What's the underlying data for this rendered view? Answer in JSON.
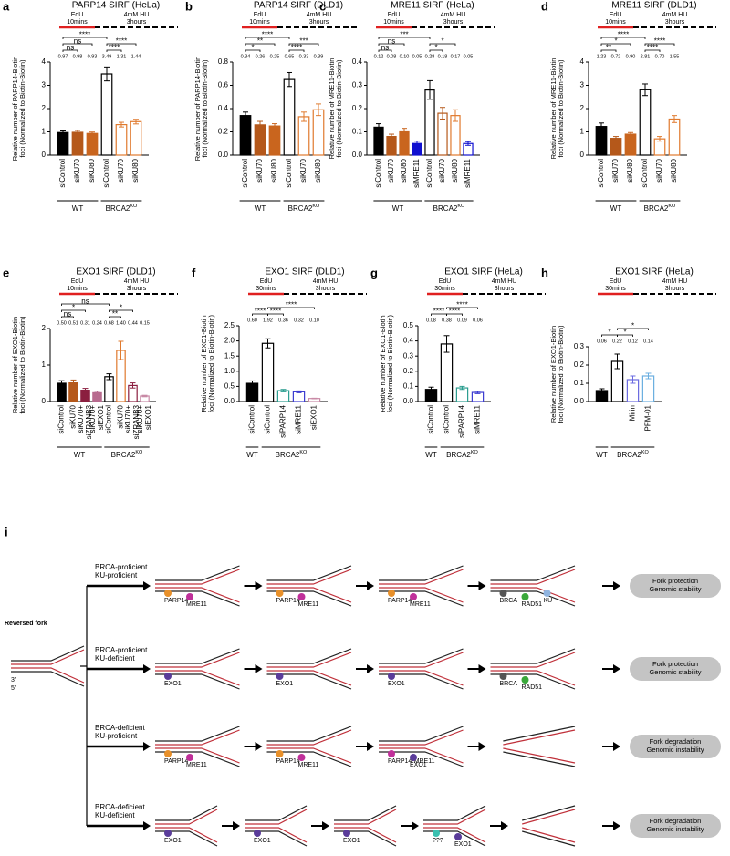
{
  "chart_data": [
    {
      "type": "bar",
      "panel": "a",
      "title": "PARP14 SIRF (HeLa)",
      "protocol": [
        "EdU\n10mins",
        "4mM HU\n3hours"
      ],
      "ylabel": "Relative number of PARP14-Biotin\nfoci (Normalized to Biotin-Biotin)",
      "categories": [
        "siControl",
        "siKU70",
        "siKU80",
        "siControl",
        "siKU70",
        "siKU80"
      ],
      "values": [
        0.97,
        0.98,
        0.93,
        3.49,
        1.31,
        1.44
      ],
      "value_labels": [
        "0.97",
        "0.98",
        "0.93",
        "3.49",
        "1.31",
        "1.44"
      ],
      "errors": [
        0.07,
        0.08,
        0.06,
        0.3,
        0.1,
        0.1
      ],
      "colors": [
        "#000000",
        "#b5581a",
        "#c9651e",
        "#000000",
        "#e07a2e",
        "#e07a2e"
      ],
      "hollow": [
        false,
        false,
        false,
        true,
        true,
        true
      ],
      "ylim": [
        0,
        4
      ],
      "yticks": [
        0,
        1,
        2,
        3,
        4
      ],
      "groups": [
        {
          "label": "WT",
          "count": 3
        },
        {
          "label": "BRCA2",
          "sup": "KO",
          "count": 3
        }
      ],
      "brackets": [
        {
          "from": 0,
          "to": 1,
          "label": "ns"
        },
        {
          "from": 0,
          "to": 2,
          "label": "ns"
        },
        {
          "from": 0,
          "to": 3,
          "label": "****"
        },
        {
          "from": 3,
          "to": 4,
          "label": "****"
        },
        {
          "from": 3,
          "to": 5,
          "label": "****"
        }
      ]
    },
    {
      "type": "bar",
      "panel": "b",
      "title": "PARP14 SIRF (DLD1)",
      "protocol": [
        "EdU\n10mins",
        "4mM HU\n3hours"
      ],
      "ylabel": "Relative number of PARP14-Biotin\nfoci (Normalized to Biotin-Biotin)",
      "categories": [
        "siControl",
        "siKU70",
        "siKU80",
        "siControl",
        "siKU70",
        "siKU80"
      ],
      "values": [
        0.34,
        0.26,
        0.25,
        0.65,
        0.33,
        0.39
      ],
      "value_labels": [
        "0.34",
        "0.26",
        "0.25",
        "0.65",
        "0.33",
        "0.39"
      ],
      "errors": [
        0.03,
        0.03,
        0.02,
        0.06,
        0.04,
        0.05
      ],
      "colors": [
        "#000000",
        "#b5581a",
        "#c9651e",
        "#000000",
        "#e07a2e",
        "#e07a2e"
      ],
      "hollow": [
        false,
        false,
        false,
        true,
        true,
        true
      ],
      "ylim": [
        0,
        0.8
      ],
      "yticks": [
        {
          "value": 0,
          "label": "0.0"
        },
        0.2,
        0.4,
        0.6,
        0.8
      ],
      "groups": [
        {
          "label": "WT",
          "count": 3
        },
        {
          "label": "BRCA2",
          "sup": "KO",
          "count": 3
        }
      ],
      "brackets": [
        {
          "from": 0,
          "to": 1,
          "label": "*"
        },
        {
          "from": 0,
          "to": 2,
          "label": "**"
        },
        {
          "from": 0,
          "to": 3,
          "label": "****"
        },
        {
          "from": 3,
          "to": 4,
          "label": "****"
        },
        {
          "from": 3,
          "to": 5,
          "label": "***"
        }
      ]
    },
    {
      "type": "bar",
      "panel": "c",
      "title": "MRE11 SIRF (HeLa)",
      "protocol": [
        "EdU\n10mins",
        "4mM HU\n3hours"
      ],
      "ylabel": "Relative number of MRE11-Biotin\nfoci (Normalized to Biotin-Biotin)",
      "categories": [
        "siControl",
        "siKU70",
        "siKU80",
        "siMRE11",
        "siControl",
        "siKU70",
        "siKU80",
        "siMRE11"
      ],
      "values": [
        0.12,
        0.08,
        0.1,
        0.05,
        0.28,
        0.18,
        0.17,
        0.05
      ],
      "value_labels": [
        "0.12",
        "0.08",
        "0.10",
        "0.05",
        "0.28",
        "0.18",
        "0.17",
        "0.05"
      ],
      "errors": [
        0.015,
        0.01,
        0.015,
        0.01,
        0.04,
        0.025,
        0.025,
        0.008
      ],
      "colors": [
        "#000000",
        "#b5581a",
        "#c9651e",
        "#1010d0",
        "#000000",
        "#b5581a",
        "#e07a2e",
        "#1010d0"
      ],
      "hollow": [
        false,
        false,
        false,
        false,
        true,
        true,
        true,
        true
      ],
      "ylim": [
        0,
        0.4
      ],
      "yticks": [
        {
          "value": 0,
          "label": "0.0"
        },
        0.1,
        0.2,
        0.3,
        0.4
      ],
      "groups": [
        {
          "label": "WT",
          "count": 4
        },
        {
          "label": "BRCA2",
          "sup": "KO",
          "count": 4
        }
      ],
      "brackets": [
        {
          "from": 0,
          "to": 1,
          "label": "ns"
        },
        {
          "from": 0,
          "to": 2,
          "label": "ns"
        },
        {
          "from": 0,
          "to": 4,
          "label": "***"
        },
        {
          "from": 4,
          "to": 5,
          "label": "*"
        },
        {
          "from": 4,
          "to": 6,
          "label": "*"
        }
      ]
    },
    {
      "type": "bar",
      "panel": "d",
      "title": "MRE11 SIRF (DLD1)",
      "protocol": [
        "EdU\n10mins",
        "4mM HU\n3hours"
      ],
      "ylabel": "Relative number of MRE11-Biotin\nfoci (Normalized to Biotin-Biotin)",
      "categories": [
        "siControl",
        "siKU70",
        "siKU80",
        "siControl",
        "siKU70",
        "siKU80"
      ],
      "values": [
        1.23,
        0.72,
        0.9,
        2.81,
        0.7,
        1.55
      ],
      "value_labels": [
        "1.23",
        "0.72",
        "0.90",
        "2.81",
        "0.70",
        "1.55"
      ],
      "errors": [
        0.15,
        0.08,
        0.07,
        0.25,
        0.1,
        0.15
      ],
      "colors": [
        "#000000",
        "#b5581a",
        "#c9651e",
        "#000000",
        "#e07a2e",
        "#e07a2e"
      ],
      "hollow": [
        false,
        false,
        false,
        true,
        true,
        true
      ],
      "ylim": [
        0,
        4
      ],
      "yticks": [
        0,
        1,
        2,
        3,
        4
      ],
      "groups": [
        {
          "label": "WT",
          "count": 3
        },
        {
          "label": "BRCA2",
          "sup": "KO",
          "count": 3
        }
      ],
      "brackets": [
        {
          "from": 0,
          "to": 1,
          "label": "**"
        },
        {
          "from": 0,
          "to": 2,
          "label": "*"
        },
        {
          "from": 0,
          "to": 3,
          "label": "****"
        },
        {
          "from": 3,
          "to": 4,
          "label": "****"
        },
        {
          "from": 3,
          "to": 5,
          "label": "****"
        }
      ]
    },
    {
      "type": "bar",
      "panel": "e",
      "title": "EXO1 SIRF (DLD1)",
      "protocol": [
        "EdU\n10mins",
        "4mM HU\n3hours"
      ],
      "ylabel": "Relative number of EXO1-Biotin\nfoci (Normalized to Biotin-Biotin)",
      "categories": [
        "siControl",
        "siKU70",
        "siKU70+\nsiZRANB3",
        "siKU70+\nsiEXO1",
        "siControl",
        "siKU70",
        "siKU70+\nsiZRANB3",
        "siKU70+\nsiEXO1"
      ],
      "values": [
        0.5,
        0.51,
        0.31,
        0.24,
        0.68,
        1.4,
        0.44,
        0.15
      ],
      "value_labels": [
        "0.50",
        "0.51",
        "0.31",
        "0.24",
        "0.68",
        "1.40",
        "0.44",
        "0.15"
      ],
      "errors": [
        0.07,
        0.08,
        0.05,
        0.04,
        0.08,
        0.25,
        0.07,
        0.02
      ],
      "colors": [
        "#000000",
        "#b5581a",
        "#8b1e3f",
        "#b86b8f",
        "#000000",
        "#e07a2e",
        "#8b1e3f",
        "#c98aa6"
      ],
      "hollow": [
        false,
        false,
        false,
        false,
        true,
        true,
        true,
        true
      ],
      "ylim": [
        0,
        2
      ],
      "yticks": [
        0,
        1,
        2
      ],
      "groups": [
        {
          "label": "WT",
          "count": 4
        },
        {
          "label": "BRCA2",
          "sup": "KO",
          "count": 4
        }
      ],
      "brackets": [
        {
          "from": 0,
          "to": 1,
          "label": "ns"
        },
        {
          "from": 0,
          "to": 2,
          "label": "*"
        },
        {
          "from": 0,
          "to": 4,
          "label": "ns"
        },
        {
          "from": 4,
          "to": 5,
          "label": "**"
        },
        {
          "from": 4,
          "to": 6,
          "label": "*"
        }
      ]
    },
    {
      "type": "bar",
      "panel": "f",
      "title": "EXO1 SIRF (DLD1)",
      "protocol": [
        "EdU\n30mins",
        "4mM HU\n3hours"
      ],
      "ylabel": "Relative number of EXO1-Biotin\nfoci (Normalized to Biotin-Biotin)",
      "categories": [
        "siControl",
        "siControl",
        "siPARP14",
        "siMRE11",
        "siEXO1"
      ],
      "values": [
        0.6,
        1.92,
        0.36,
        0.32,
        0.1
      ],
      "value_labels": [
        "0.60",
        "1.92",
        "0.36",
        "0.32",
        "0.10"
      ],
      "errors": [
        0.08,
        0.15,
        0.04,
        0.03,
        0.01
      ],
      "colors": [
        "#000000",
        "#000000",
        "#2a9d8f",
        "#3b3bd0",
        "#c98aa6"
      ],
      "hollow": [
        false,
        true,
        true,
        true,
        true
      ],
      "ylim": [
        0,
        2.5
      ],
      "yticks": [
        {
          "value": 0,
          "label": "0.0"
        },
        0.5,
        {
          "value": 1,
          "label": "1.0"
        },
        1.5,
        {
          "value": 2,
          "label": "2.0"
        },
        2.5
      ],
      "groups": [
        {
          "label": "WT",
          "count": 1
        },
        {
          "label": "BRCA2",
          "sup": "KO",
          "count": 4
        }
      ],
      "brackets": [
        {
          "from": 0,
          "to": 1,
          "label": "****"
        },
        {
          "from": 1,
          "to": 2,
          "label": "****"
        },
        {
          "from": 1,
          "to": 4,
          "label": "****"
        }
      ]
    },
    {
      "type": "bar",
      "panel": "g",
      "title": "EXO1 SIRF (HeLa)",
      "protocol": [
        "EdU\n30mins",
        "4mM HU\n3hours"
      ],
      "ylabel": "Relative number of EXO1-Biotin\nfoci (Normalized to Biotin-Biotin)",
      "categories": [
        "siControl",
        "siControl",
        "siPARP14",
        "siMRE11"
      ],
      "values": [
        0.08,
        0.38,
        0.09,
        0.06
      ],
      "value_labels": [
        "0.08",
        "0.38",
        "0.09",
        "0.06"
      ],
      "errors": [
        0.015,
        0.055,
        0.01,
        0.008
      ],
      "colors": [
        "#000000",
        "#000000",
        "#2a9d8f",
        "#3b3bd0"
      ],
      "hollow": [
        false,
        true,
        true,
        true
      ],
      "ylim": [
        0,
        0.5
      ],
      "yticks": [
        {
          "value": 0,
          "label": "0.0"
        },
        0.1,
        0.2,
        0.3,
        0.4,
        0.5
      ],
      "groups": [
        {
          "label": "WT",
          "count": 1
        },
        {
          "label": "BRCA2",
          "sup": "KO",
          "count": 3
        }
      ],
      "brackets": [
        {
          "from": 0,
          "to": 1,
          "label": "****"
        },
        {
          "from": 1,
          "to": 2,
          "label": "****"
        },
        {
          "from": 1,
          "to": 3,
          "label": "****"
        }
      ]
    },
    {
      "type": "bar",
      "panel": "h",
      "title": "EXO1 SIRF (HeLa)",
      "protocol": [
        "EdU\n30mins",
        "4mM HU\n3hours"
      ],
      "ylabel": "Relative number of EXO1-Biotin\nfoci (Normalized to Biotin-Biotin)",
      "categories": [
        null,
        null,
        "Mirin",
        "PFM-01"
      ],
      "values": [
        0.06,
        0.22,
        0.12,
        0.14
      ],
      "value_labels": [
        "0.06",
        "0.22",
        "0.12",
        "0.14"
      ],
      "errors": [
        0.01,
        0.04,
        0.02,
        0.015
      ],
      "colors": [
        "#000000",
        "#000000",
        "#6a6ae0",
        "#6aaee0"
      ],
      "hollow": [
        false,
        true,
        true,
        true
      ],
      "ylim": [
        0,
        0.3
      ],
      "yticks": [
        {
          "value": 0,
          "label": "0.0"
        },
        0.1,
        0.2,
        0.3
      ],
      "groups": [
        {
          "label": "WT",
          "count": 1
        },
        {
          "label": "BRCA2",
          "sup": "KO",
          "count": 3
        }
      ],
      "brackets": [
        {
          "from": 0,
          "to": 1,
          "label": "*"
        },
        {
          "from": 1,
          "to": 2,
          "label": "*"
        },
        {
          "from": 1,
          "to": 3,
          "label": "*"
        }
      ]
    }
  ],
  "diagram": {
    "panel": "i",
    "start": {
      "label": "Reversed fork",
      "three": "3'",
      "five": "5'"
    },
    "rows": [
      {
        "condition": [
          {
            "text": "BRCA-proficient",
            "color": "#2e6b2e"
          },
          {
            "text": "KU-proficient",
            "color": "#2e6b2e"
          }
        ],
        "stages": [
          [
            {
              "label": "PARP14",
              "color": "#e8902a"
            },
            {
              "label": "MRE11",
              "color": "#c0309a"
            }
          ],
          [
            {
              "label": "PARP14",
              "color": "#e8902a"
            },
            {
              "label": "MRE11",
              "color": "#c0309a"
            }
          ],
          [
            {
              "label": "PARP14",
              "color": "#e8902a"
            },
            {
              "label": "MRE11",
              "color": "#c0309a"
            }
          ],
          [
            {
              "label": "BRCA",
              "color": "#555555"
            },
            {
              "label": "RAD51",
              "color": "#3aa83a"
            },
            {
              "label": "KU",
              "color": "#8fb4e0"
            }
          ]
        ],
        "outcome": {
          "lines": [
            "Fork protection",
            "Genomic stability"
          ],
          "color": "#2e5a2e"
        }
      },
      {
        "condition": [
          {
            "text": "BRCA-proficient",
            "color": "#2e6b2e"
          },
          {
            "text": "KU-deficient",
            "color": "#b03030"
          }
        ],
        "stages": [
          [
            {
              "label": "EXO1",
              "color": "#5a3c9a"
            }
          ],
          [
            {
              "label": "EXO1",
              "color": "#5a3c9a"
            }
          ],
          [
            {
              "label": "EXO1",
              "color": "#5a3c9a"
            }
          ],
          [
            {
              "label": "BRCA",
              "color": "#555555"
            },
            {
              "label": "RAD51",
              "color": "#3aa83a"
            }
          ]
        ],
        "outcome": {
          "lines": [
            "Fork protection",
            "Genomic stability"
          ],
          "color": "#2e5a2e"
        }
      },
      {
        "condition": [
          {
            "text": "BRCA-deficient",
            "color": "#b03030"
          },
          {
            "text": "KU-proficient",
            "color": "#2e6b2e"
          }
        ],
        "stages": [
          [
            {
              "label": "PARP14",
              "color": "#e8902a"
            },
            {
              "label": "MRE11",
              "color": "#c0309a"
            }
          ],
          [
            {
              "label": "PARP14",
              "color": "#e8902a"
            },
            {
              "label": "MRE11",
              "color": "#c0309a"
            }
          ],
          [
            {
              "label": "PARP14-MRE11",
              "color": "#c0309a"
            },
            {
              "label": "EXO1",
              "color": "#5a3c9a"
            }
          ],
          []
        ],
        "outcome": {
          "lines": [
            "Fork degradation",
            "Genomic instability"
          ],
          "color": "#8b2a2a"
        }
      },
      {
        "condition": [
          {
            "text": "BRCA-deficient",
            "color": "#b03030"
          },
          {
            "text": "KU-deficient",
            "color": "#b03030"
          }
        ],
        "stages": [
          [
            {
              "label": "EXO1",
              "color": "#5a3c9a"
            }
          ],
          [
            {
              "label": "EXO1",
              "color": "#5a3c9a"
            }
          ],
          [
            {
              "label": "EXO1",
              "color": "#5a3c9a"
            }
          ],
          [
            {
              "label": "???",
              "color": "#3ac0b0"
            },
            {
              "label": "EXO1",
              "color": "#5a3c9a"
            }
          ],
          []
        ],
        "outcome": {
          "lines": [
            "Fork degradation",
            "Genomic instability"
          ],
          "color": "#8b2a2a"
        }
      }
    ]
  }
}
